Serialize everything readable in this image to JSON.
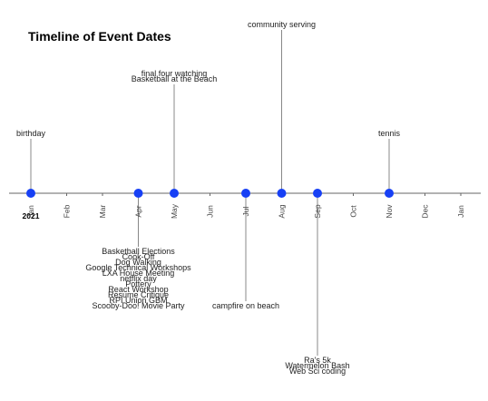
{
  "chart_data": {
    "type": "timeline",
    "title": "Timeline of Event Dates",
    "year_label": "2021",
    "months": [
      "Jan",
      "Feb",
      "Mar",
      "Apr",
      "May",
      "Jun",
      "Jul",
      "Aug",
      "Sep",
      "Oct",
      "Nov",
      "Dec",
      "Jan"
    ],
    "marker_color": "#1740f5",
    "events": [
      {
        "month": 0,
        "position": "above",
        "level": 1,
        "labels": [
          "birthday"
        ]
      },
      {
        "month": 3,
        "position": "below",
        "level": 1,
        "labels": [
          "Basketball Elections",
          "Cook-Off",
          "Dog Walking",
          "Google Technical Workshops",
          "LXA House Meeting",
          "netflix day",
          "Pottery",
          "React Workshop",
          "Resume Critique",
          "RPI Union GBM",
          "Scooby-Doo! Movie Party"
        ]
      },
      {
        "month": 4,
        "position": "above",
        "level": 2,
        "labels": [
          "final four watching",
          "Basketball at the Beach"
        ]
      },
      {
        "month": 6,
        "position": "below",
        "level": 2,
        "labels": [
          "campfire on beach"
        ]
      },
      {
        "month": 7,
        "position": "above",
        "level": 3,
        "labels": [
          "community serving"
        ]
      },
      {
        "month": 8,
        "position": "below",
        "level": 3,
        "labels": [
          "Ra's 5k",
          "Watermelon Bash",
          "Web Sci coding"
        ]
      },
      {
        "month": 10,
        "position": "above",
        "level": 1,
        "labels": [
          "tennis"
        ]
      }
    ]
  }
}
